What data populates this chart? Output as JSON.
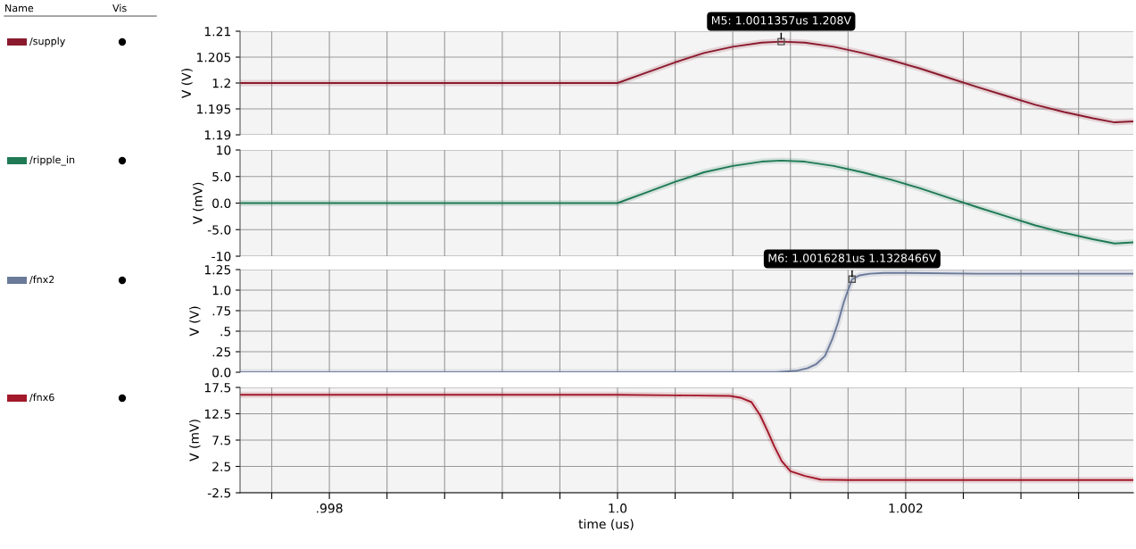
{
  "chart_data": [
    {
      "type": "line",
      "ylabel": "V (V)",
      "legend": "left",
      "grid": true,
      "tick_labels": "y",
      "annotations": [
        "Name",
        "Vis",
        {
          "text": "M5: 1.0011357us 1.208V",
          "x": 1.0011357,
          "y": 1.208
        }
      ],
      "xlim": [
        0.99738,
        1.00358
      ],
      "xticks": [
        {
          "value": 0.9976,
          "label": null
        },
        {
          "value": 0.998,
          "label": null
        },
        {
          "value": 0.9984,
          "label": null
        },
        {
          "value": 0.9988,
          "label": null
        },
        {
          "value": 0.9992,
          "label": null
        },
        {
          "value": 0.9996,
          "label": null
        },
        {
          "value": 1.0,
          "label": null
        },
        {
          "value": 1.0004,
          "label": null
        },
        {
          "value": 1.0008,
          "label": null
        },
        {
          "value": 1.0012,
          "label": null
        },
        {
          "value": 1.0016,
          "label": null
        },
        {
          "value": 1.002,
          "label": null
        },
        {
          "value": 1.0024,
          "label": null
        },
        {
          "value": 1.0028,
          "label": null
        },
        {
          "value": 1.0032,
          "label": null
        }
      ],
      "ylim": [
        1.19,
        1.21
      ],
      "yticks": [
        1.19,
        1.195,
        1.2,
        1.205,
        1.21
      ],
      "series": [
        {
          "name": "/supply",
          "color": "#8b1a2e",
          "x": [
            0.99738,
            1.0,
            1.0002,
            1.0004,
            1.0006,
            1.0008,
            1.001,
            1.0011357,
            1.0013,
            1.0015,
            1.0017,
            1.0019,
            1.0021,
            1.0023,
            1.0025,
            1.0027,
            1.0029,
            1.0031,
            1.0033,
            1.00345,
            1.00358
          ],
          "values": [
            1.2,
            1.2,
            1.202,
            1.204,
            1.2058,
            1.207,
            1.2078,
            1.208,
            1.2078,
            1.207,
            1.2058,
            1.2044,
            1.2028,
            1.201,
            1.1992,
            1.1975,
            1.1958,
            1.1944,
            1.1932,
            1.1924,
            1.1926
          ]
        }
      ]
    },
    {
      "type": "line",
      "ylabel": "V (mV)",
      "legend": "left",
      "grid": true,
      "tick_labels": "y",
      "xlim": [
        0.99738,
        1.00358
      ],
      "xticks": [
        {
          "value": 0.9976,
          "label": null
        },
        {
          "value": 0.998,
          "label": null
        },
        {
          "value": 0.9984,
          "label": null
        },
        {
          "value": 0.9988,
          "label": null
        },
        {
          "value": 0.9992,
          "label": null
        },
        {
          "value": 0.9996,
          "label": null
        },
        {
          "value": 1.0,
          "label": null
        },
        {
          "value": 1.0004,
          "label": null
        },
        {
          "value": 1.0008,
          "label": null
        },
        {
          "value": 1.0012,
          "label": null
        },
        {
          "value": 1.0016,
          "label": null
        },
        {
          "value": 1.002,
          "label": null
        },
        {
          "value": 1.0024,
          "label": null
        },
        {
          "value": 1.0028,
          "label": null
        },
        {
          "value": 1.0032,
          "label": null
        }
      ],
      "ylim": [
        -10,
        10
      ],
      "yticks": [
        -10,
        {
          "value": -5,
          "label": "-5.0"
        },
        {
          "value": 0,
          "label": "0.0"
        },
        {
          "value": 5,
          "label": "5.0"
        },
        10
      ],
      "series": [
        {
          "name": "/ripple_in",
          "color": "#1f7a55",
          "x": [
            0.99738,
            1.0,
            1.0002,
            1.0004,
            1.0006,
            1.0008,
            1.001,
            1.0011357,
            1.0013,
            1.0015,
            1.0017,
            1.0019,
            1.0021,
            1.0023,
            1.0025,
            1.0027,
            1.0029,
            1.0031,
            1.0033,
            1.00345,
            1.00358
          ],
          "values": [
            0,
            0,
            2,
            4,
            5.8,
            7,
            7.8,
            8,
            7.8,
            7,
            5.8,
            4.4,
            2.8,
            1,
            -0.8,
            -2.5,
            -4.2,
            -5.6,
            -6.8,
            -7.6,
            -7.4
          ]
        }
      ]
    },
    {
      "type": "line",
      "ylabel": "V (V)",
      "legend": "left",
      "grid": true,
      "tick_labels": "y",
      "annotations": [
        {
          "text": "M6: 1.0016281us 1.1328466V",
          "x": 1.0016281,
          "y": 1.1328466
        }
      ],
      "xlim": [
        0.99738,
        1.00358
      ],
      "xticks": [
        {
          "value": 0.9976,
          "label": null
        },
        {
          "value": 0.998,
          "label": null
        },
        {
          "value": 0.9984,
          "label": null
        },
        {
          "value": 0.9988,
          "label": null
        },
        {
          "value": 0.9992,
          "label": null
        },
        {
          "value": 0.9996,
          "label": null
        },
        {
          "value": 1.0,
          "label": null
        },
        {
          "value": 1.0004,
          "label": null
        },
        {
          "value": 1.0008,
          "label": null
        },
        {
          "value": 1.0012,
          "label": null
        },
        {
          "value": 1.0016,
          "label": null
        },
        {
          "value": 1.002,
          "label": null
        },
        {
          "value": 1.0024,
          "label": null
        },
        {
          "value": 1.0028,
          "label": null
        },
        {
          "value": 1.0032,
          "label": null
        }
      ],
      "ylim": [
        0,
        1.25
      ],
      "yticks": [
        {
          "value": 0,
          "label": "0.0"
        },
        {
          "value": 0.25,
          "label": ".25"
        },
        {
          "value": 0.5,
          "label": ".5"
        },
        {
          "value": 0.75,
          "label": ".75"
        },
        {
          "value": 1.0,
          "label": "1.0"
        },
        1.25
      ],
      "series": [
        {
          "name": "/fnx2",
          "color": "#6b7a99",
          "x": [
            0.99738,
            1.0,
            1.0011,
            1.00125,
            1.00132,
            1.00138,
            1.00144,
            1.00149,
            1.00153,
            1.00157,
            1.0016,
            1.0016281,
            1.00168,
            1.00175,
            1.00185,
            1.002,
            1.0025,
            1.00358
          ],
          "values": [
            0.0,
            0.0,
            0.0,
            0.02,
            0.05,
            0.1,
            0.2,
            0.4,
            0.6,
            0.85,
            1.0,
            1.1328466,
            1.18,
            1.2,
            1.21,
            1.21,
            1.2,
            1.2
          ]
        }
      ]
    },
    {
      "type": "line",
      "ylabel": "V (mV)",
      "xlabel": "time (us)",
      "legend": "left",
      "grid": true,
      "xlim": [
        0.99738,
        1.00358
      ],
      "xticks": [
        {
          "value": 0.9976,
          "label": null
        },
        {
          "value": 0.998,
          "label": ".998"
        },
        {
          "value": 0.9984,
          "label": null
        },
        {
          "value": 0.9988,
          "label": null
        },
        {
          "value": 0.9992,
          "label": null
        },
        {
          "value": 0.9996,
          "label": null
        },
        {
          "value": 1.0,
          "label": "1.0"
        },
        {
          "value": 1.0004,
          "label": null
        },
        {
          "value": 1.0008,
          "label": null
        },
        {
          "value": 1.0012,
          "label": null
        },
        {
          "value": 1.0016,
          "label": null
        },
        {
          "value": 1.002,
          "label": "1.002"
        },
        {
          "value": 1.0024,
          "label": null
        },
        {
          "value": 1.0028,
          "label": null
        },
        {
          "value": 1.0032,
          "label": null
        }
      ],
      "ylim": [
        -2.5,
        17.5
      ],
      "yticks": [
        -2.5,
        2.5,
        7.5,
        12.5,
        17.5
      ],
      "series": [
        {
          "name": "/fnx6",
          "color": "#a3182a",
          "x": [
            0.99738,
            1.0,
            1.0004,
            1.00078,
            1.00086,
            1.00093,
            1.00099,
            1.00104,
            1.00109,
            1.00114,
            1.0012,
            1.0013,
            1.00141,
            1.0016,
            1.002,
            1.00358
          ],
          "values": [
            16.1,
            16.1,
            16.0,
            15.9,
            15.5,
            14.7,
            12.2,
            9.3,
            6.2,
            3.5,
            1.6,
            0.7,
            0.0,
            -0.1,
            -0.1,
            -0.1
          ]
        }
      ]
    }
  ]
}
